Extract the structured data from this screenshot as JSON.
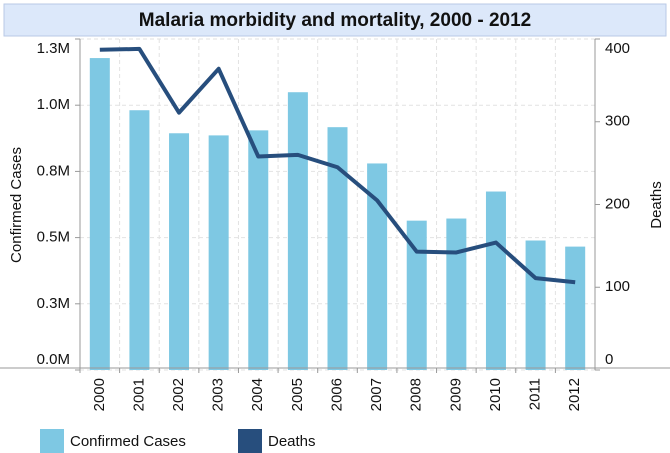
{
  "chart_data": {
    "type": "bar-line",
    "title": "Malaria morbidity and mortality, 2000 - 2012",
    "categories": [
      "2000",
      "2001",
      "2002",
      "2003",
      "2004",
      "2005",
      "2006",
      "2007",
      "2008",
      "2009",
      "2010",
      "2011",
      "2012"
    ],
    "series": [
      {
        "name": "Confirmed Cases",
        "type": "bar",
        "color": "#7ec8e3",
        "axis": "y",
        "values": [
          1178000,
          981000,
          894000,
          886000,
          905000,
          1049000,
          917000,
          780000,
          564000,
          572000,
          674000,
          489000,
          466000
        ]
      },
      {
        "name": "Deaths",
        "type": "line",
        "color": "#274e7d",
        "axis": "y2",
        "values": [
          387,
          388,
          311,
          364,
          258,
          260,
          245,
          205,
          143,
          142,
          154,
          111,
          106
        ]
      }
    ],
    "ylabel": "Confirmed Cases",
    "y2label": "Deaths",
    "ylim": [
      0,
      1250000
    ],
    "yticks": [
      {
        "value": 0,
        "label": "0.0M"
      },
      {
        "value": 250000,
        "label": "0.3M"
      },
      {
        "value": 500000,
        "label": "0.5M"
      },
      {
        "value": 750000,
        "label": "0.8M"
      },
      {
        "value": 1000000,
        "label": "1.0M"
      },
      {
        "value": 1250000,
        "label": "1.3M"
      }
    ],
    "y2lim": [
      0,
      400
    ],
    "y2ticks": [
      0,
      100,
      200,
      300,
      400
    ],
    "grid": true,
    "legend": "bottom"
  }
}
